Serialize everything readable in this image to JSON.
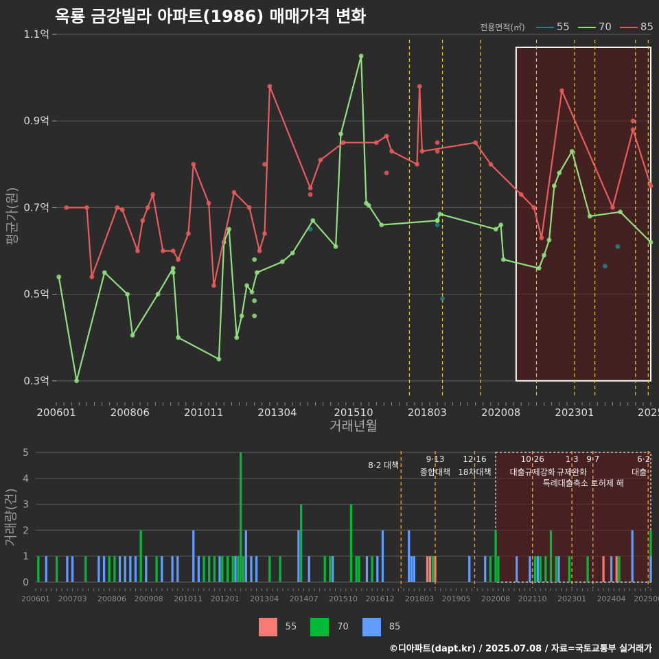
{
  "title": "옥룡 금강빌라 아파트(1986) 매매가격 변화",
  "footer": "©디아파트(dapt.kr) / 2025.07.08 / 자료=국토교통부 실거래가",
  "colors": {
    "bg": "#2b2b2b",
    "grid": "#555555",
    "s55": "#2a7f8a",
    "s70": "#90e080",
    "s85": "#e85c5c",
    "bar55": "#f87a74",
    "bar70": "#00ba38",
    "bar85": "#619cff",
    "policy": "#e8c830",
    "policy_bottom": "#f0a020",
    "highlight": "#5a1a1a"
  },
  "legend_top": {
    "title": "전용면적(㎡)",
    "items": [
      {
        "label": "55",
        "color": "#2a7f8a"
      },
      {
        "label": "70",
        "color": "#90e080"
      },
      {
        "label": "85",
        "color": "#e85c5c"
      }
    ]
  },
  "legend_bottom": {
    "items": [
      {
        "label": "55",
        "color": "#f87a74"
      },
      {
        "label": "70",
        "color": "#00ba38"
      },
      {
        "label": "85",
        "color": "#619cff"
      }
    ]
  },
  "chart_data": [
    {
      "type": "line",
      "xlabel": "거래년월",
      "ylabel": "평균가(원)",
      "ylim": [
        0.26,
        1.1
      ],
      "yticks": [
        0.3,
        0.5,
        0.7,
        0.9,
        1.1
      ],
      "ytick_labels": [
        "0.3억",
        "0.5억",
        "0.7억",
        "0.9억",
        "1.1억"
      ],
      "xlim": [
        "2006-01",
        "2025-07"
      ],
      "xticks": [
        "2006-01",
        "2008-06",
        "2010-11",
        "2013-04",
        "2015-10",
        "2018-03",
        "2020-08",
        "2023-01",
        "2025-07"
      ],
      "xtick_labels": [
        "200601",
        "200806",
        "201011",
        "201304",
        "201510",
        "201803",
        "202008",
        "202301",
        "2025"
      ],
      "policy_lines": [
        "2017-08",
        "2018-09",
        "2019-12",
        "2021-10",
        "2023-01",
        "2023-09",
        "2025-01",
        "2025-06"
      ],
      "highlight_range": [
        "2021-02",
        "2025-07"
      ],
      "series": [
        {
          "name": "55",
          "line": false,
          "points": [
            [
              "2014-05",
              0.65
            ],
            [
              "2018-07",
              0.66
            ],
            [
              "2018-09",
              0.49
            ],
            [
              "2024-01",
              0.565
            ],
            [
              "2024-06",
              0.61
            ]
          ]
        },
        {
          "name": "70",
          "line": true,
          "points": [
            [
              "2006-02",
              0.54
            ],
            [
              "2006-09",
              0.3
            ],
            [
              "2007-08",
              0.55
            ],
            [
              "2008-05",
              0.5
            ],
            [
              "2008-07",
              0.405
            ],
            [
              "2009-05",
              0.5
            ],
            [
              "2009-11",
              0.56
            ],
            [
              "2010-01",
              0.4
            ],
            [
              "2011-05",
              0.35
            ],
            [
              "2011-07",
              0.62
            ],
            [
              "2011-09",
              0.65
            ],
            [
              "2011-12",
              0.4
            ],
            [
              "2012-02",
              0.45
            ],
            [
              "2012-04",
              0.52
            ],
            [
              "2012-06",
              0.505
            ],
            [
              "2012-08",
              0.55
            ],
            [
              "2013-06",
              0.575
            ],
            [
              "2013-10",
              0.595
            ],
            [
              "2014-06",
              0.67
            ],
            [
              "2015-03",
              0.61
            ],
            [
              "2015-05",
              0.87
            ],
            [
              "2016-01",
              1.05
            ],
            [
              "2016-03",
              0.71
            ],
            [
              "2016-04",
              0.705
            ],
            [
              "2016-09",
              0.66
            ],
            [
              "2018-07",
              0.67
            ],
            [
              "2018-08",
              0.685
            ],
            [
              "2020-06",
              0.65
            ],
            [
              "2020-08",
              0.66
            ],
            [
              "2020-09",
              0.58
            ],
            [
              "2021-11",
              0.56
            ],
            [
              "2022-01",
              0.59
            ],
            [
              "2022-03",
              0.625
            ],
            [
              "2022-05",
              0.75
            ],
            [
              "2022-07",
              0.78
            ],
            [
              "2022-12",
              0.83
            ],
            [
              "2023-07",
              0.68
            ],
            [
              "2024-07",
              0.69
            ],
            [
              "2025-07",
              0.62
            ]
          ],
          "extra_points": [
            [
              "2009-11",
              0.55
            ],
            [
              "2012-07",
              0.58
            ],
            [
              "2012-07",
              0.485
            ],
            [
              "2012-07",
              0.45
            ],
            [
              "2018-07",
              0.67
            ]
          ]
        },
        {
          "name": "85",
          "line": true,
          "points": [
            [
              "2006-05",
              0.7
            ],
            [
              "2007-01",
              0.7
            ],
            [
              "2007-03",
              0.54
            ],
            [
              "2008-01",
              0.7
            ],
            [
              "2008-03",
              0.695
            ],
            [
              "2008-09",
              0.6
            ],
            [
              "2008-11",
              0.67
            ],
            [
              "2009-01",
              0.7
            ],
            [
              "2009-03",
              0.73
            ],
            [
              "2009-07",
              0.6
            ],
            [
              "2009-11",
              0.6
            ],
            [
              "2010-01",
              0.58
            ],
            [
              "2010-05",
              0.64
            ],
            [
              "2010-07",
              0.8
            ],
            [
              "2011-01",
              0.71
            ],
            [
              "2011-03",
              0.52
            ],
            [
              "2011-11",
              0.735
            ],
            [
              "2012-05",
              0.7
            ],
            [
              "2012-09",
              0.6
            ],
            [
              "2012-11",
              0.64
            ],
            [
              "2013-01",
              0.98
            ],
            [
              "2014-05",
              0.745
            ],
            [
              "2014-09",
              0.81
            ],
            [
              "2015-06",
              0.85
            ],
            [
              "2016-07",
              0.85
            ],
            [
              "2016-11",
              0.865
            ],
            [
              "2017-01",
              0.83
            ],
            [
              "2017-11",
              0.8
            ],
            [
              "2017-12",
              0.98
            ],
            [
              "2018-01",
              0.83
            ],
            [
              "2019-10",
              0.85
            ],
            [
              "2020-04",
              0.8
            ],
            [
              "2021-04",
              0.73
            ],
            [
              "2021-09",
              0.7
            ],
            [
              "2021-12",
              0.63
            ],
            [
              "2022-08",
              0.97
            ],
            [
              "2024-04",
              0.7
            ],
            [
              "2024-12",
              0.88
            ],
            [
              "2025-07",
              0.75
            ]
          ],
          "extra_points": [
            [
              "2014-05",
              0.73
            ],
            [
              "2016-11",
              0.78
            ],
            [
              "2012-11",
              0.8
            ],
            [
              "2018-07",
              0.85
            ],
            [
              "2018-07",
              0.83
            ],
            [
              "2024-12",
              0.9
            ]
          ]
        }
      ]
    },
    {
      "type": "bar",
      "ylabel": "거래량(건)",
      "ylim": [
        0,
        5
      ],
      "yticks": [
        0,
        1,
        2,
        3,
        4,
        5
      ],
      "xticks": [
        "2006-01",
        "2007-03",
        "2008-06",
        "2009-08",
        "2010-11",
        "2012-01",
        "2013-04",
        "2014-07",
        "2015-10",
        "2016-12",
        "2018-03",
        "2019-05",
        "2020-08",
        "2021-10",
        "2023-01",
        "2024-04",
        "2025-06"
      ],
      "xtick_labels": [
        "200601",
        "200703",
        "200806",
        "200908",
        "201011",
        "201201",
        "201304",
        "201407",
        "201510",
        "201612",
        "201803",
        "201905",
        "202008",
        "202110",
        "202301",
        "202404",
        "202506"
      ],
      "highlight_range": [
        "2020-08",
        "2025-07"
      ],
      "policies": [
        {
          "date": "2017-08",
          "label1": "8·2 대책",
          "label2": ""
        },
        {
          "date": "2018-09",
          "label1": "9·13",
          "label2": "종합대책"
        },
        {
          "date": "2019-12",
          "label1": "12·16",
          "label2": "18차대책"
        },
        {
          "date": "2021-10",
          "label1": "10·26",
          "label2": "대출규제강화"
        },
        {
          "date": "2023-01",
          "label1": "1·3",
          "label2": "규제완화"
        },
        {
          "date": "2023-09",
          "label1": "9·7",
          "label2": "특례대출축소 토허제 해"
        },
        {
          "date": "2025-06",
          "label1": "6·2",
          "label2": "대출"
        }
      ],
      "bars": {
        "55": [
          [
            "2018-06",
            1
          ],
          [
            "2018-07",
            1
          ],
          [
            "2018-08",
            1
          ],
          [
            "2018-09",
            1
          ],
          [
            "2024-01",
            1
          ],
          [
            "2024-06",
            1
          ]
        ],
        "70": [
          [
            "2006-02",
            1
          ],
          [
            "2006-09",
            1
          ],
          [
            "2007-08",
            1
          ],
          [
            "2008-05",
            1
          ],
          [
            "2008-07",
            1
          ],
          [
            "2009-05",
            2
          ],
          [
            "2009-11",
            1
          ],
          [
            "2010-01",
            1
          ],
          [
            "2011-05",
            1
          ],
          [
            "2011-07",
            1
          ],
          [
            "2011-09",
            1
          ],
          [
            "2011-12",
            1
          ],
          [
            "2012-02",
            1
          ],
          [
            "2012-04",
            1
          ],
          [
            "2012-06",
            1
          ],
          [
            "2012-07",
            5
          ],
          [
            "2012-08",
            1
          ],
          [
            "2013-06",
            1
          ],
          [
            "2013-10",
            1
          ],
          [
            "2014-06",
            3
          ],
          [
            "2015-03",
            1
          ],
          [
            "2015-05",
            1
          ],
          [
            "2016-01",
            3
          ],
          [
            "2016-03",
            1
          ],
          [
            "2016-04",
            1
          ],
          [
            "2016-09",
            1
          ],
          [
            "2018-08",
            1
          ],
          [
            "2020-06",
            1
          ],
          [
            "2020-08",
            2
          ],
          [
            "2020-09",
            1
          ],
          [
            "2021-11",
            1
          ],
          [
            "2022-01",
            1
          ],
          [
            "2022-03",
            1
          ],
          [
            "2022-05",
            2
          ],
          [
            "2022-07",
            1
          ],
          [
            "2022-12",
            1
          ],
          [
            "2023-07",
            1
          ],
          [
            "2024-07",
            1
          ],
          [
            "2025-07",
            2
          ]
        ],
        "85": [
          [
            "2006-05",
            1
          ],
          [
            "2007-01",
            1
          ],
          [
            "2007-03",
            1
          ],
          [
            "2008-01",
            1
          ],
          [
            "2008-03",
            1
          ],
          [
            "2008-09",
            1
          ],
          [
            "2008-11",
            1
          ],
          [
            "2009-01",
            1
          ],
          [
            "2009-03",
            1
          ],
          [
            "2009-07",
            1
          ],
          [
            "2010-01",
            1
          ],
          [
            "2010-05",
            1
          ],
          [
            "2010-07",
            1
          ],
          [
            "2011-01",
            2
          ],
          [
            "2011-03",
            1
          ],
          [
            "2011-11",
            1
          ],
          [
            "2012-05",
            1
          ],
          [
            "2012-09",
            2
          ],
          [
            "2012-11",
            1
          ],
          [
            "2013-01",
            1
          ],
          [
            "2014-05",
            2
          ],
          [
            "2014-09",
            1
          ],
          [
            "2015-06",
            1
          ],
          [
            "2016-07",
            1
          ],
          [
            "2016-11",
            1
          ],
          [
            "2017-01",
            2
          ],
          [
            "2017-11",
            2
          ],
          [
            "2017-12",
            1
          ],
          [
            "2018-01",
            1
          ],
          [
            "2019-10",
            1
          ],
          [
            "2020-04",
            1
          ],
          [
            "2021-04",
            1
          ],
          [
            "2021-09",
            1
          ],
          [
            "2021-12",
            1
          ],
          [
            "2022-08",
            1
          ],
          [
            "2024-04",
            1
          ],
          [
            "2024-12",
            2
          ],
          [
            "2025-07",
            1
          ]
        ]
      }
    }
  ]
}
